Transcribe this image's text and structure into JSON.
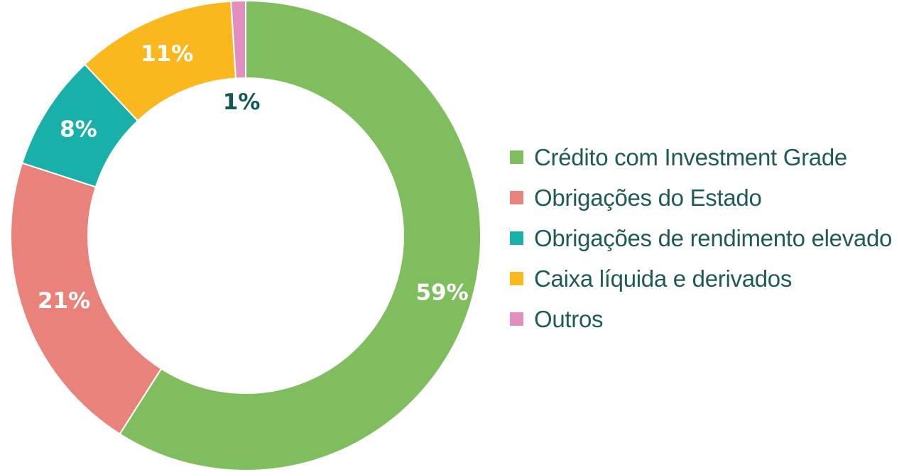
{
  "chart_data": {
    "type": "pie",
    "variant": "donut",
    "legend_position": "right",
    "slices": [
      {
        "label": "Crédito com Investment Grade",
        "value": 59,
        "display": "59%",
        "color": "#7fbd5f",
        "label_color": "#ffffff"
      },
      {
        "label": "Obrigações do Estado",
        "value": 21,
        "display": "21%",
        "color": "#e8827a",
        "label_color": "#ffffff"
      },
      {
        "label": "Obrigações de rendimento elevado",
        "value": 8,
        "display": "8%",
        "color": "#19b0aa",
        "label_color": "#ffffff"
      },
      {
        "label": "Caixa líquida e derivados",
        "value": 11,
        "display": "11%",
        "color": "#fbb81e",
        "label_color": "#ffffff"
      },
      {
        "label": "Outros",
        "value": 1,
        "display": "1%",
        "color": "#e48ec0",
        "label_color": "#13585a"
      }
    ]
  }
}
